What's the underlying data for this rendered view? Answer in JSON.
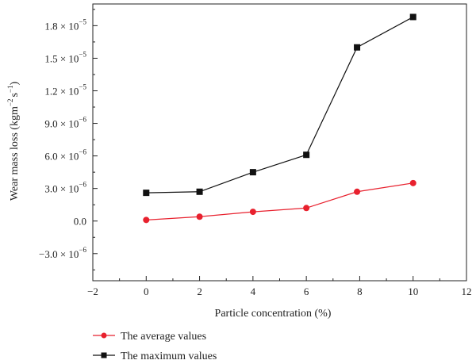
{
  "chart_data": {
    "type": "line",
    "title": "",
    "xlabel": "Particle concentration (%)",
    "ylabel_main": "Wear mass loss (kgm",
    "ylabel_sup1": "−2",
    "ylabel_mid": "s",
    "ylabel_sup2": "−1",
    "ylabel_end": ")",
    "xlim": [
      -2,
      12
    ],
    "ylim": [
      -5.5e-06,
      2e-05
    ],
    "x_ticks": [
      -2,
      0,
      2,
      4,
      6,
      8,
      10,
      12
    ],
    "x_tick_labels": [
      "−2",
      "0",
      "2",
      "4",
      "6",
      "8",
      "10",
      "12"
    ],
    "y_ticks": [
      -3e-06,
      0,
      3e-06,
      6e-06,
      9e-06,
      1.2e-05,
      1.5e-05,
      1.8e-05
    ],
    "y_tick_mantissas": [
      "−3.0 × 10",
      "0.0",
      "3.0 × 10",
      "6.0 × 10",
      "9.0 × 10",
      "1.2 × 10",
      "1.5 × 10",
      "1.8 × 10"
    ],
    "y_tick_exponents": [
      "−6",
      "",
      "−6",
      "−6",
      "−6",
      "−5",
      "−5",
      "−5"
    ],
    "legend_position": "bottom-left",
    "grid": false,
    "series": [
      {
        "name": "The average values",
        "color": "#e8212e",
        "marker": "circle",
        "x": [
          0,
          2,
          4,
          6,
          7.9,
          10
        ],
        "y": [
          1e-07,
          4e-07,
          8.5e-07,
          1.2e-06,
          2.7e-06,
          3.5e-06
        ]
      },
      {
        "name": "The maximum values",
        "color": "#111111",
        "marker": "square",
        "x": [
          0,
          2,
          4,
          6,
          7.9,
          10
        ],
        "y": [
          2.6e-06,
          2.7e-06,
          4.5e-06,
          6.1e-06,
          1.6e-05,
          1.88e-05
        ]
      }
    ]
  }
}
